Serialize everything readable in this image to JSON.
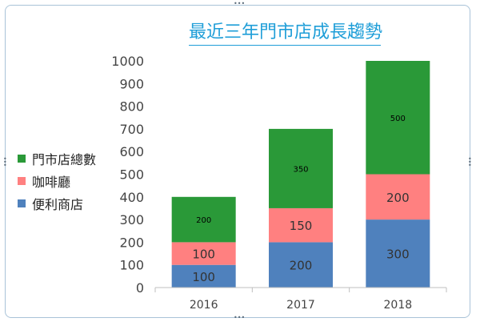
{
  "chart_data": {
    "type": "bar",
    "stacked": true,
    "title": "最近三年門市店成長趨勢",
    "categories": [
      "2016",
      "2017",
      "2018"
    ],
    "series": [
      {
        "name": "便利商店",
        "values": [
          100,
          200,
          300
        ],
        "color": "#4f81bd",
        "label_color": "#333333",
        "labels": [
          "100",
          "200",
          "300"
        ]
      },
      {
        "name": "咖啡廳",
        "values": [
          100,
          150,
          200
        ],
        "color": "#ff8080",
        "label_color": "#333333",
        "labels": [
          "100",
          "150",
          "200"
        ]
      },
      {
        "name": "門市店總數",
        "values": [
          200,
          350,
          500
        ],
        "color": "#2a9938",
        "label_color": "#000000",
        "labels": [
          "200",
          "350",
          "500"
        ]
      }
    ],
    "legend_order": [
      "門市店總數",
      "咖啡廳",
      "便利商店"
    ],
    "legend_position": "left",
    "ylim": [
      0,
      1000
    ],
    "yticks": [
      "0",
      "100",
      "200",
      "300",
      "400",
      "500",
      "600",
      "700",
      "800",
      "900",
      "1000"
    ],
    "xlabel": "",
    "ylabel": "",
    "grid": false
  }
}
